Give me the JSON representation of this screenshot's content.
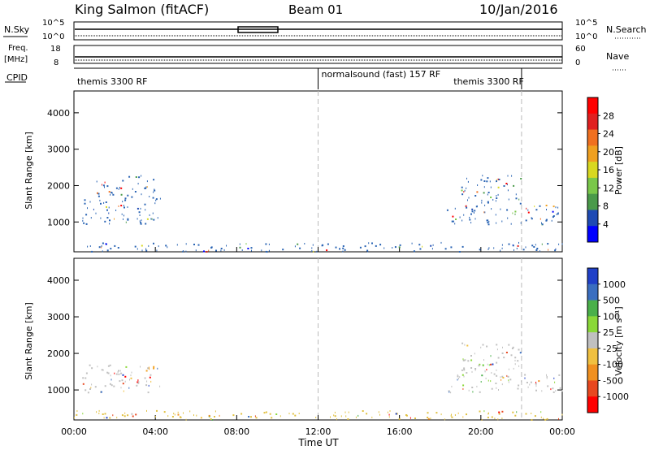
{
  "header": {
    "station": "King Salmon (fitACF)",
    "beam": "Beam 01",
    "date": "10/Jan/2016"
  },
  "top_panels": {
    "nsky_label": "N.Sky",
    "nsky_ticks": [
      "10^5",
      "10^0"
    ],
    "nsearch_label": "N.Search",
    "nsearch_ticks": [
      "10^5",
      "10^0"
    ],
    "freq_label": "Freq.",
    "freq_unit": "[MHz]",
    "freq_ticks": [
      "18",
      "8"
    ],
    "nave_label": "Nave",
    "nave_ticks": [
      "60",
      "0"
    ],
    "cpid_label": "CPID",
    "cpid_segments": [
      {
        "label": "themis 3300 RF",
        "start_h": 0,
        "end_h": 12
      },
      {
        "label": "normalsound (fast) 157 RF",
        "start_h": 12,
        "end_h": 22
      },
      {
        "label": "themis 3300 RF",
        "start_h": 18.5,
        "end_h": 22
      }
    ]
  },
  "x_axis": {
    "label": "Time UT",
    "ticks": [
      "00:00",
      "04:00",
      "08:00",
      "12:00",
      "16:00",
      "20:00",
      "00:00"
    ],
    "range_hours": [
      0,
      24
    ]
  },
  "chart_data": [
    {
      "type": "heatmap",
      "name": "power",
      "ylabel": "Slant Range [km]",
      "yticks": [
        1000,
        2000,
        3000,
        4000
      ],
      "ylim": [
        180,
        4600
      ],
      "xlim": [
        0,
        24
      ],
      "colorbar_label": "Power [dB]",
      "colorbar_ticks": [
        "4",
        "8",
        "12",
        "16",
        "20",
        "24",
        "28"
      ],
      "colorbar_colors": [
        "#0000ff",
        "#1e4ab4",
        "#4a9a4a",
        "#7ac84a",
        "#d8d820",
        "#f0a020",
        "#f07020",
        "#e02020",
        "#ff0000"
      ],
      "regions": [
        {
          "t0": 0.4,
          "t1": 4.3,
          "r0": 950,
          "r1": 1700,
          "main_color": "#2a64b4"
        },
        {
          "t0": 1.0,
          "t1": 4.0,
          "r0": 1700,
          "r1": 2300,
          "main_color": "#2a64b4"
        },
        {
          "t0": 18.3,
          "t1": 24.0,
          "r0": 950,
          "r1": 1500,
          "main_color": "#2a64b4"
        },
        {
          "t0": 19.0,
          "t1": 22.0,
          "r0": 1500,
          "r1": 2300,
          "main_color": "#2a64b4"
        },
        {
          "t0": 0.0,
          "t1": 24.0,
          "r0": 200,
          "r1": 450,
          "main_color": "#2a64b4"
        }
      ]
    },
    {
      "type": "heatmap",
      "name": "velocity",
      "ylabel": "Slant Range [km]",
      "yticks": [
        1000,
        2000,
        3000,
        4000
      ],
      "ylim": [
        180,
        4600
      ],
      "xlim": [
        0,
        24
      ],
      "colorbar_label": "Velocity [m s⁻¹]",
      "colorbar_ticks": [
        "1000",
        "500",
        "100",
        "25",
        "-25",
        "-100",
        "-500",
        "-1000"
      ],
      "colorbar_colors": [
        "#2040c8",
        "#3a6ec0",
        "#4ab04a",
        "#8ad838",
        "#c0c0c0",
        "#f0c040",
        "#f09020",
        "#e84820",
        "#ff0000"
      ],
      "regions": [
        {
          "t0": 0.4,
          "t1": 4.3,
          "r0": 950,
          "r1": 1700,
          "main_color": "#c0c0c0"
        },
        {
          "t0": 3.2,
          "t1": 3.9,
          "r0": 1400,
          "r1": 1700,
          "main_color": "#f0a020"
        },
        {
          "t0": 18.3,
          "t1": 24.0,
          "r0": 950,
          "r1": 1500,
          "main_color": "#c0c0c0"
        },
        {
          "t0": 19.0,
          "t1": 22.0,
          "r0": 1500,
          "r1": 2300,
          "main_color": "#c0c0c0"
        },
        {
          "t0": 20.0,
          "t1": 20.6,
          "r0": 1550,
          "r1": 1800,
          "main_color": "#6ad838"
        },
        {
          "t0": 0.0,
          "t1": 24.0,
          "r0": 200,
          "r1": 450,
          "main_color": "#e0c040"
        }
      ]
    }
  ],
  "colors": {
    "frame": "#000000",
    "dashed_time_marker": "#bbbbbb"
  }
}
